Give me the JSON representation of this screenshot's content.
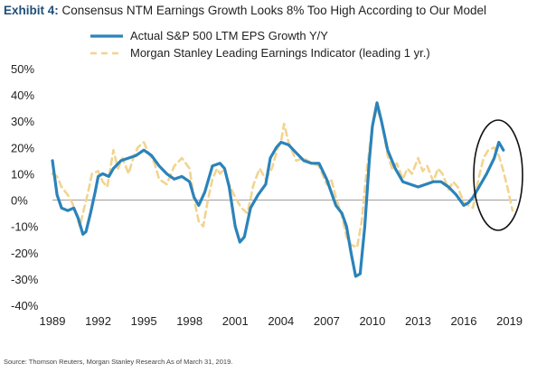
{
  "title": {
    "exhibit": "Exhibit 4:",
    "text": "Consensus NTM Earnings Growth Looks 8% Too High According to Our Model"
  },
  "source": "Source: Thomson Reuters, Morgan Stanley Research As of March 31, 2019.",
  "colors": {
    "actual": "#2b83ba",
    "leading": "#f2d48f",
    "ellipse": "#111111",
    "zero_line": "#9e9e9e"
  },
  "chart_data": {
    "type": "line",
    "ylim": [
      -40,
      50
    ],
    "xlim": [
      1989,
      2019.5
    ],
    "yticks": [
      "50%",
      "40%",
      "30%",
      "20%",
      "10%",
      "0%",
      "-10%",
      "-20%",
      "-30%",
      "-40%"
    ],
    "ytick_values": [
      50,
      40,
      30,
      20,
      10,
      0,
      -10,
      -20,
      -30,
      -40
    ],
    "xticks": [
      "1989",
      "1992",
      "1995",
      "1998",
      "2001",
      "2004",
      "2007",
      "2010",
      "2013",
      "2016",
      "2019"
    ],
    "xtick_values": [
      1989,
      1992,
      1995,
      1998,
      2001,
      2004,
      2007,
      2010,
      2013,
      2016,
      2019
    ],
    "legend_position": "top-left",
    "annotation": "ellipse around 2017-2019 divergence",
    "series": [
      {
        "name": "Actual S&P 500 LTM EPS Growth Y/Y",
        "style": "solid",
        "x": [
          1989,
          1989.3,
          1989.6,
          1990,
          1990.4,
          1990.7,
          1991,
          1991.2,
          1991.5,
          1991.8,
          1992,
          1992.3,
          1992.7,
          1993,
          1993.5,
          1994,
          1994.5,
          1995,
          1995.5,
          1996,
          1996.5,
          1997,
          1997.5,
          1998,
          1998.3,
          1998.6,
          1999,
          1999.5,
          2000,
          2000.3,
          2000.6,
          2001,
          2001.3,
          2001.6,
          2002,
          2002.5,
          2003,
          2003.3,
          2003.7,
          2004,
          2004.5,
          2005,
          2005.5,
          2006,
          2006.5,
          2007,
          2007.3,
          2007.6,
          2008,
          2008.3,
          2008.6,
          2008.9,
          2009.2,
          2009.5,
          2009.8,
          2010,
          2010.3,
          2010.6,
          2011,
          2011.5,
          2012,
          2012.5,
          2013,
          2013.5,
          2014,
          2014.5,
          2015,
          2015.5,
          2016,
          2016.3,
          2016.6,
          2017,
          2017.5,
          2018,
          2018.3,
          2018.6
        ],
        "y": [
          15,
          2,
          -3,
          -4,
          -3,
          -7,
          -13,
          -12,
          -5,
          3,
          9,
          10,
          9,
          12,
          15,
          16,
          17,
          19,
          17,
          13,
          10,
          8,
          9,
          7,
          1,
          -2,
          3,
          13,
          14,
          12,
          5,
          -10,
          -16,
          -14,
          -3,
          2,
          6,
          16,
          20,
          22,
          21,
          18,
          15,
          14,
          14,
          8,
          3,
          -2,
          -5,
          -10,
          -20,
          -29,
          -28,
          -10,
          15,
          28,
          37,
          30,
          19,
          12,
          7,
          6,
          5,
          6,
          7,
          7,
          5,
          2,
          -2,
          -1,
          1,
          5,
          10,
          16,
          22,
          19
        ]
      },
      {
        "name": "Morgan Stanley Leading Earnings Indicator (leading 1 yr.)",
        "style": "dashed",
        "x": [
          1989,
          1989.3,
          1989.6,
          1990,
          1990.3,
          1990.6,
          1990.8,
          1991,
          1991.3,
          1991.6,
          1992,
          1992.3,
          1992.6,
          1993,
          1993.3,
          1993.6,
          1994,
          1994.3,
          1994.6,
          1995,
          1995.3,
          1995.7,
          1996,
          1996.5,
          1997,
          1997.5,
          1998,
          1998.3,
          1998.6,
          1998.9,
          1999.2,
          1999.5,
          1999.8,
          2000,
          2000.3,
          2000.6,
          2001,
          2001.4,
          2001.8,
          2002.2,
          2002.6,
          2003,
          2003.4,
          2003.8,
          2004,
          2004.2,
          2004.5,
          2005,
          2005.5,
          2006,
          2006.5,
          2007,
          2007.3,
          2007.6,
          2008,
          2008.3,
          2008.6,
          2009,
          2009.3,
          2009.6,
          2010,
          2010.3,
          2010.6,
          2011,
          2011.3,
          2011.6,
          2012,
          2012.3,
          2012.6,
          2013,
          2013.3,
          2013.6,
          2014,
          2014.3,
          2014.6,
          2015,
          2015.3,
          2015.6,
          2016,
          2016.3,
          2016.6,
          2017,
          2017.3,
          2017.6,
          2018,
          2018.3,
          2018.6,
          2018.9,
          2019.2
        ],
        "y": [
          10,
          9,
          5,
          2,
          -1,
          -6,
          -10,
          -5,
          2,
          10,
          11,
          7,
          5,
          19,
          12,
          16,
          10,
          16,
          20,
          22,
          18,
          14,
          8,
          6,
          13,
          16,
          12,
          0,
          -8,
          -10,
          0,
          8,
          12,
          10,
          12,
          6,
          1,
          -3,
          -5,
          6,
          12,
          8,
          12,
          20,
          22,
          29,
          22,
          15,
          16,
          14,
          13,
          6,
          8,
          1,
          -6,
          -14,
          -17,
          -18,
          -8,
          10,
          28,
          35,
          30,
          17,
          12,
          14,
          8,
          12,
          10,
          16,
          11,
          13,
          7,
          12,
          10,
          4,
          7,
          5,
          -1,
          -2,
          -3,
          9,
          16,
          19,
          20,
          17,
          11,
          4,
          -4
        ]
      }
    ]
  }
}
